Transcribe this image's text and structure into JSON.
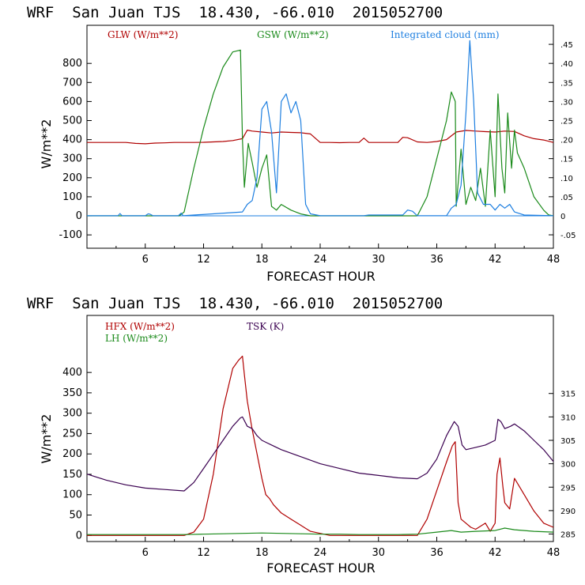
{
  "panels": [
    {
      "title": "WRF  San Juan TJS  18.430, -66.010  2015052700",
      "xlabel": "FORECAST HOUR",
      "ylabel": "W/m**2",
      "x_ticks": [
        "6",
        "12",
        "18",
        "24",
        "30",
        "36",
        "42",
        "48"
      ],
      "y_ticks": [
        "800",
        "700",
        "600",
        "500",
        "400",
        "300",
        "200",
        "100",
        "0",
        "-100"
      ],
      "right_ticks": [
        ".45",
        ".40",
        ".35",
        ".30",
        ".25",
        ".20",
        ".15",
        ".10",
        ".05",
        "0",
        "-.05"
      ],
      "legend": [
        {
          "label": "GLW (W/m**2)",
          "color": "#b00000"
        },
        {
          "label": "GSW (W/m**2)",
          "color": "#1a8a1a"
        },
        {
          "label": "Integrated cloud (mm)",
          "color": "#1e7fe0"
        }
      ]
    },
    {
      "title": "WRF  San Juan TJS  18.430, -66.010  2015052700",
      "xlabel": "FORECAST HOUR",
      "ylabel": "W/m**2",
      "x_ticks": [
        "6",
        "12",
        "18",
        "24",
        "30",
        "36",
        "42",
        "48"
      ],
      "y_ticks": [
        "400",
        "350",
        "300",
        "250",
        "200",
        "150",
        "100",
        "50",
        "0"
      ],
      "right_ticks": [
        "315",
        "310",
        "305",
        "300",
        "295",
        "290",
        "285"
      ],
      "legend": [
        {
          "label": "HFX (W/m**2)",
          "color": "#b00000"
        },
        {
          "label": "LH  (W/m**2)",
          "color": "#1a8a1a"
        },
        {
          "label": "TSK (K)",
          "color": "#3a0050"
        }
      ]
    }
  ],
  "chart_data": [
    {
      "type": "line",
      "title": "WRF  San Juan TJS  18.430, -66.010  2015052700",
      "xlabel": "FORECAST HOUR",
      "ylabel": "W/m**2",
      "xlim": [
        0,
        48
      ],
      "ylim": [
        -170,
        1000
      ],
      "y2lim": [
        -0.0852,
        0.5
      ],
      "series": [
        {
          "name": "GLW (W/m**2)",
          "color": "#b00000",
          "axis": "left",
          "x": [
            0,
            4,
            5,
            6,
            7,
            8,
            9,
            10,
            11,
            12,
            13,
            14,
            15,
            16,
            16.5,
            17,
            18,
            19,
            20,
            21,
            22,
            23,
            24,
            25,
            26,
            27,
            28,
            28.5,
            29,
            30,
            31,
            32,
            32.5,
            33,
            34,
            35,
            36,
            37,
            38,
            39,
            40,
            41,
            42,
            43,
            44,
            45,
            46,
            47,
            48
          ],
          "y": [
            385,
            385,
            380,
            378,
            382,
            383,
            385,
            385,
            385,
            386,
            388,
            390,
            395,
            405,
            450,
            445,
            440,
            435,
            440,
            438,
            436,
            430,
            385,
            385,
            384,
            385,
            385,
            408,
            385,
            385,
            385,
            385,
            412,
            410,
            388,
            385,
            390,
            400,
            440,
            448,
            445,
            442,
            440,
            445,
            443,
            420,
            405,
            398,
            385
          ]
        },
        {
          "name": "GSW (W/m**2)",
          "color": "#1a8a1a",
          "axis": "left",
          "x": [
            0,
            9.5,
            10,
            11,
            12,
            13,
            14,
            15,
            15.8,
            16,
            16.2,
            16.6,
            17,
            17.5,
            18,
            18.5,
            19,
            19.5,
            20,
            21,
            22,
            23,
            24,
            34,
            35,
            36,
            37,
            37.5,
            37.9,
            38,
            38.5,
            39,
            39.5,
            40,
            40.5,
            41,
            41.5,
            42,
            42.3,
            42.7,
            43,
            43.3,
            43.7,
            44,
            44.3,
            45,
            46,
            47,
            47.5,
            48
          ],
          "y": [
            0,
            0,
            20,
            250,
            460,
            640,
            780,
            860,
            870,
            400,
            150,
            380,
            280,
            150,
            250,
            320,
            50,
            30,
            60,
            30,
            10,
            0,
            0,
            0,
            100,
            300,
            500,
            650,
            600,
            50,
            350,
            60,
            150,
            80,
            250,
            50,
            450,
            100,
            640,
            250,
            120,
            540,
            250,
            450,
            330,
            250,
            100,
            30,
            5,
            0
          ]
        },
        {
          "name": "Integrated cloud (mm)",
          "color": "#1e7fe0",
          "axis": "right",
          "x": [
            0,
            3.2,
            3.4,
            3.6,
            6,
            6.3,
            6.5,
            6.8,
            9.4,
            9.7,
            9.9,
            16,
            16.5,
            17,
            17.5,
            18,
            18.5,
            19,
            19.5,
            20,
            20.5,
            21,
            21.5,
            22,
            22.5,
            23,
            24,
            28.5,
            29,
            32.5,
            33,
            33.5,
            34,
            37,
            37.5,
            38,
            38.5,
            39,
            39.4,
            39.8,
            40.2,
            40.8,
            41.5,
            42,
            42.5,
            43,
            43.5,
            44,
            44.5,
            45,
            48
          ],
          "y": [
            0,
            0,
            0.006,
            0,
            0,
            0.005,
            0.004,
            0,
            0,
            0.007,
            0,
            0.01,
            0.03,
            0.04,
            0.1,
            0.28,
            0.3,
            0.22,
            0.06,
            0.3,
            0.32,
            0.27,
            0.3,
            0.25,
            0.03,
            0.005,
            0,
            0,
            0.002,
            0.002,
            0.015,
            0.012,
            0,
            0,
            0.02,
            0.03,
            0.08,
            0.27,
            0.46,
            0.3,
            0.06,
            0.03,
            0.03,
            0.015,
            0.03,
            0.02,
            0.03,
            0.01,
            0.006,
            0.002,
            0
          ]
        }
      ]
    },
    {
      "type": "line",
      "title": "WRF  San Juan TJS  18.430, -66.010  2015052700",
      "xlabel": "FORECAST HOUR",
      "ylabel": "W/m**2",
      "xlim": [
        0,
        48
      ],
      "ylim": [
        -15,
        540
      ],
      "y2lim": [
        283.4,
        331.66
      ],
      "series": [
        {
          "name": "HFX (W/m**2)",
          "color": "#b00000",
          "axis": "left",
          "x": [
            0,
            10,
            11,
            12,
            13,
            14,
            15,
            15.6,
            16,
            16.2,
            16.5,
            17,
            18,
            18.4,
            18.8,
            19.2,
            20,
            21,
            22,
            23,
            24,
            25,
            34,
            35,
            36,
            37,
            37.6,
            37.9,
            38.2,
            38.5,
            39,
            39.5,
            40,
            41,
            41.5,
            42,
            42.2,
            42.5,
            42.8,
            43,
            43.5,
            44,
            44.5,
            45,
            46,
            47,
            48
          ],
          "y": [
            0,
            0,
            8,
            40,
            150,
            310,
            410,
            430,
            440,
            395,
            330,
            260,
            140,
            100,
            90,
            75,
            55,
            40,
            25,
            10,
            5,
            0,
            0,
            40,
            110,
            180,
            220,
            230,
            80,
            40,
            30,
            20,
            15,
            30,
            10,
            30,
            150,
            190,
            120,
            80,
            65,
            140,
            120,
            100,
            60,
            30,
            20
          ]
        },
        {
          "name": "LH  (W/m**2)",
          "color": "#1a8a1a",
          "axis": "left",
          "x": [
            0,
            10,
            12,
            14,
            16,
            18,
            20,
            22,
            24,
            26,
            28,
            30,
            32,
            34,
            36,
            37.5,
            38,
            38.5,
            40,
            42,
            43,
            44,
            46,
            48
          ],
          "y": [
            2,
            2,
            3,
            4,
            5,
            6,
            5,
            4,
            3,
            3,
            2,
            2,
            2,
            3,
            8,
            12,
            10,
            8,
            10,
            12,
            18,
            14,
            10,
            8
          ]
        },
        {
          "name": "TSK (K)",
          "color": "#3a0050",
          "axis": "right",
          "x": [
            0,
            2,
            4,
            6,
            8,
            10,
            11,
            12,
            13,
            14,
            15,
            15.8,
            16,
            16.5,
            17,
            17.5,
            18,
            18.5,
            19,
            20,
            22,
            24,
            26,
            28,
            30,
            32,
            34,
            35,
            36,
            37,
            37.8,
            38.2,
            38.6,
            39,
            40,
            41,
            42,
            42.3,
            42.6,
            43,
            43.6,
            44,
            45,
            46,
            47,
            48
          ],
          "y": [
            297.8,
            296.5,
            295.5,
            294.8,
            294.5,
            294.2,
            296,
            299,
            302,
            305,
            308,
            309.8,
            310,
            308,
            307.5,
            306,
            305,
            304.5,
            304,
            303,
            301.5,
            300,
            299,
            298,
            297.5,
            297,
            296.8,
            298,
            301,
            306,
            309,
            308,
            304,
            303,
            303.5,
            304,
            305,
            309.5,
            309,
            307.5,
            308,
            308.5,
            307,
            305,
            303,
            300.5
          ]
        }
      ]
    }
  ]
}
